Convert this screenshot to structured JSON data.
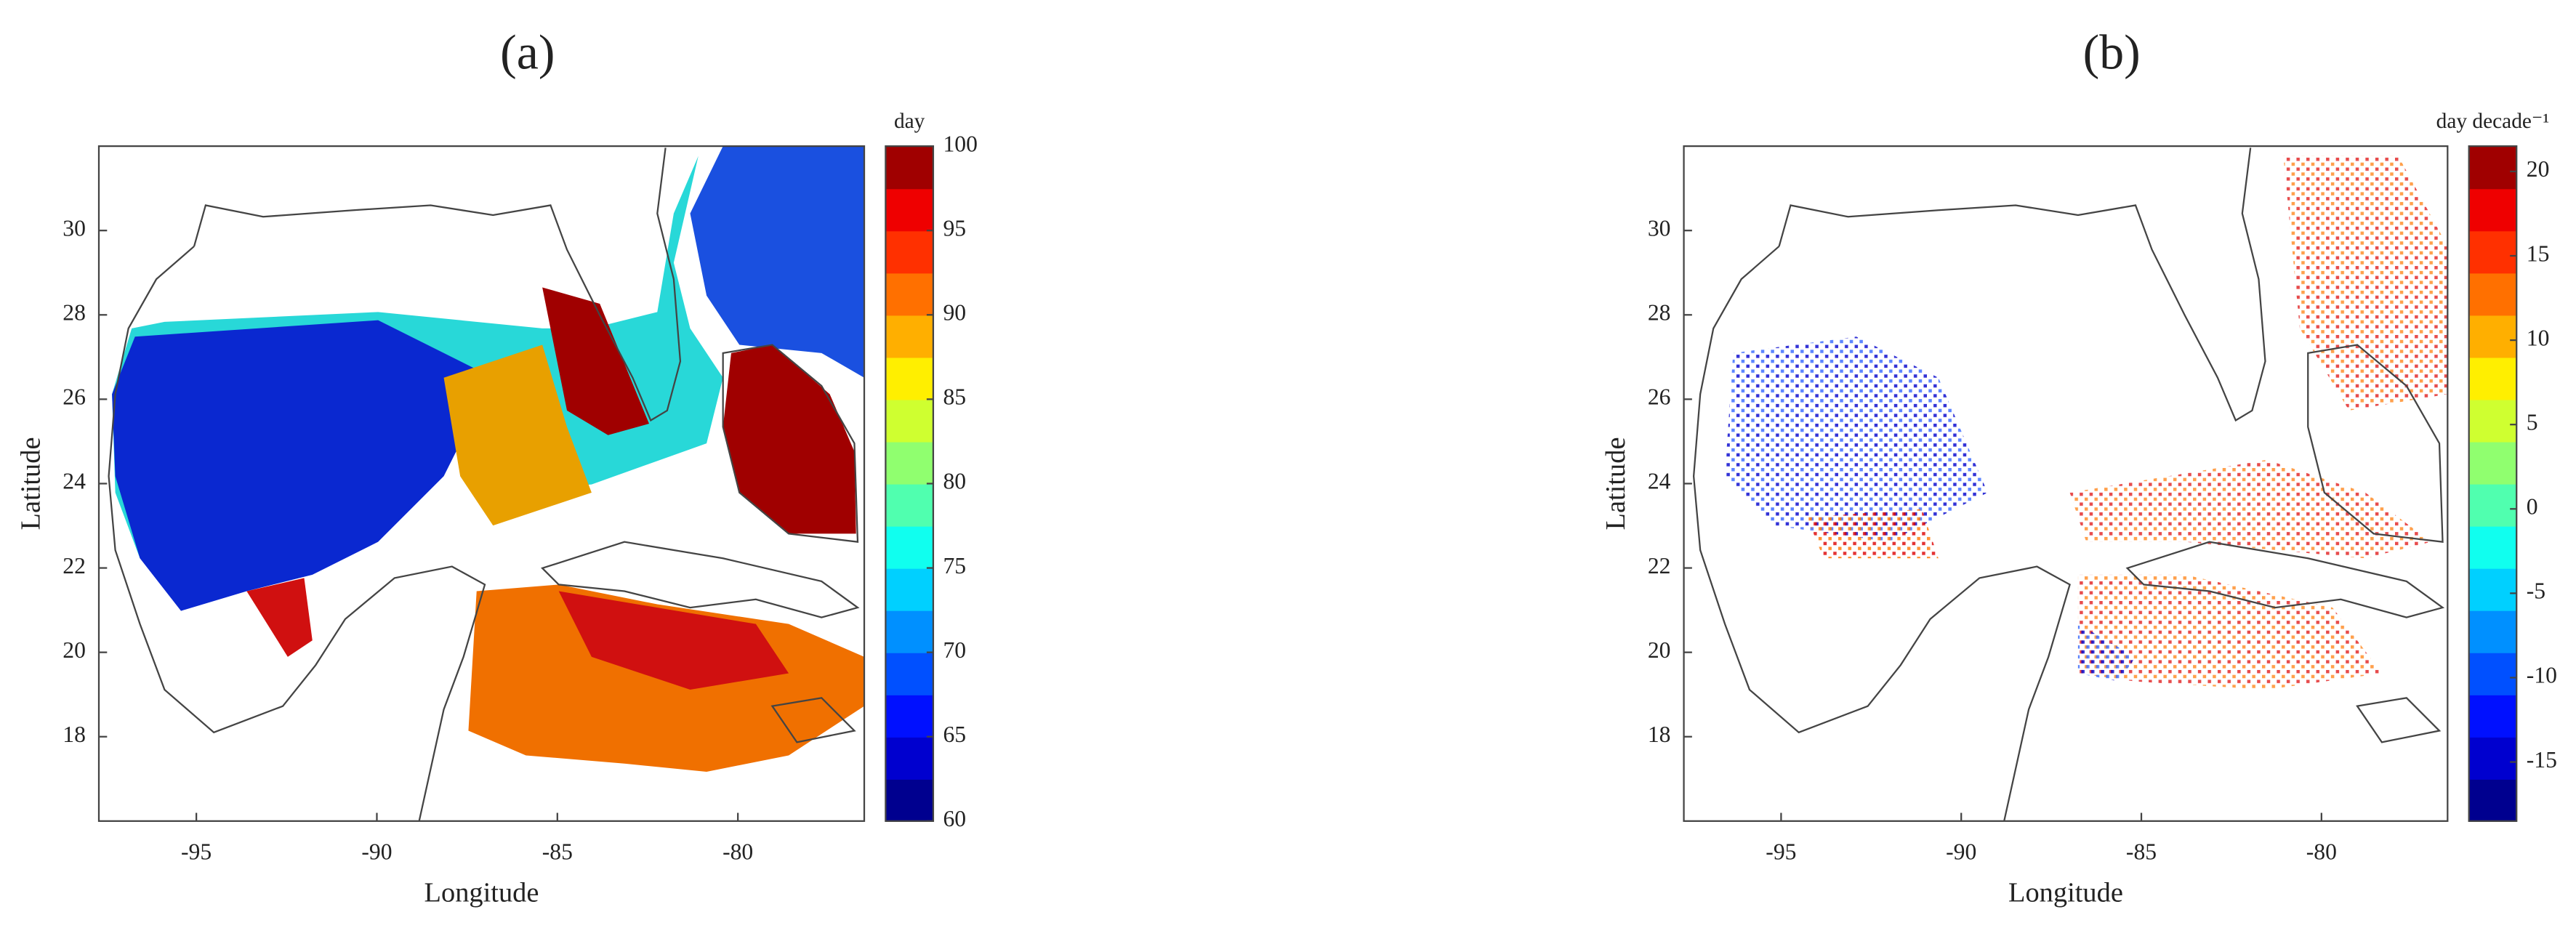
{
  "panels": [
    {
      "label": "(a)",
      "xlabel": "Longitude",
      "ylabel": "Latitude",
      "xlim": [
        -97.7,
        -76.5
      ],
      "ylim": [
        16,
        32
      ],
      "xticks": [
        -95,
        -90,
        -85,
        -80
      ],
      "yticks": [
        18,
        20,
        22,
        24,
        26,
        28,
        30
      ],
      "colorbar": {
        "label": "day",
        "lim": [
          60,
          100
        ],
        "ticks": [
          60,
          65,
          70,
          75,
          80,
          85,
          90,
          95,
          100
        ],
        "colors": [
          "#00008f",
          "#0000cf",
          "#0010ff",
          "#0050ff",
          "#0090ff",
          "#00d0ff",
          "#10ffef",
          "#50ffaf",
          "#90ff6f",
          "#cfff30",
          "#ffef00",
          "#ffaf00",
          "#ff7000",
          "#ff3000",
          "#ef0000",
          "#a00000"
        ]
      }
    },
    {
      "label": "(b)",
      "xlabel": "Longitude",
      "ylabel": "Latitude",
      "xlim": [
        -97.7,
        -76.5
      ],
      "ylim": [
        16,
        32
      ],
      "xticks": [
        -95,
        -90,
        -85,
        -80
      ],
      "yticks": [
        18,
        20,
        22,
        24,
        26,
        28,
        30
      ],
      "colorbar": {
        "label": "day decade⁻¹",
        "lim": [
          -18.5,
          21.5
        ],
        "ticks": [
          -15,
          -10,
          -5,
          0,
          5,
          10,
          15,
          20
        ],
        "colors": [
          "#00008f",
          "#0000cf",
          "#0010ff",
          "#0050ff",
          "#0090ff",
          "#00d0ff",
          "#10ffef",
          "#50ffaf",
          "#90ff6f",
          "#cfff30",
          "#ffef00",
          "#ffaf00",
          "#ff7000",
          "#ff3000",
          "#ef0000",
          "#a00000"
        ]
      }
    }
  ]
}
